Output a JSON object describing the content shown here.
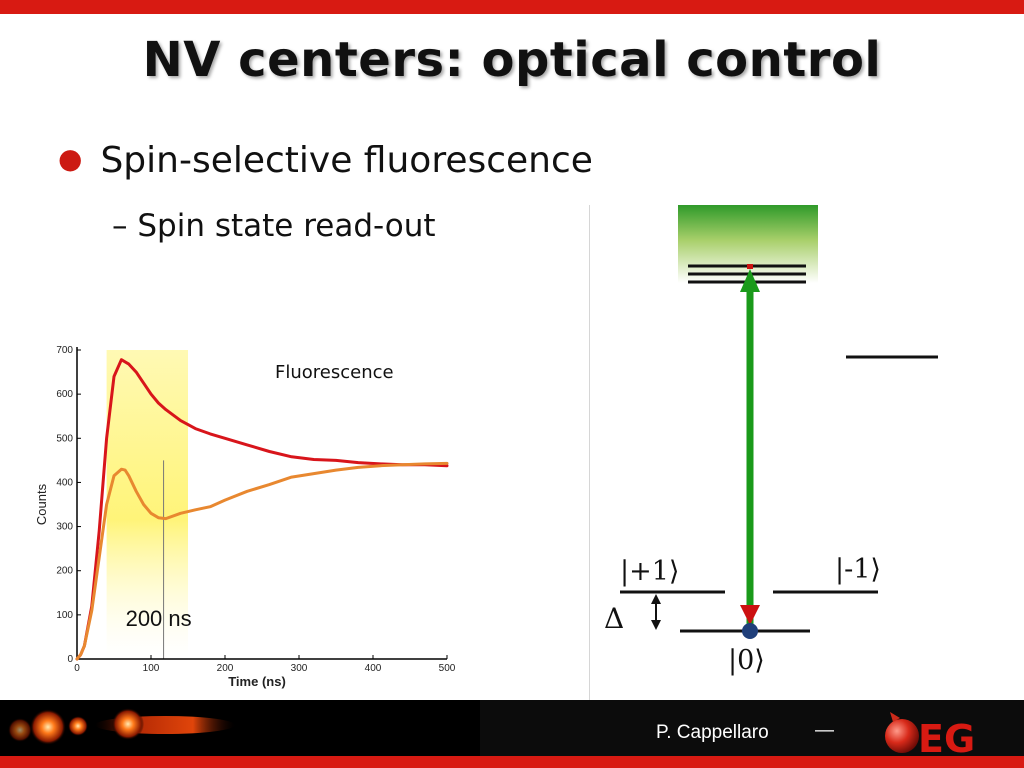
{
  "slide": {
    "title": "NV centers: optical control",
    "bullet": "Spin-selective fluorescence",
    "sub_bullet": "– Spin state read-out",
    "footer_author": "P. Cappellaro",
    "footer_dash": "—",
    "logo_text": "EG"
  },
  "energy_diagram": {
    "plus_label": "|+1⟩",
    "minus_label": "|-1⟩",
    "zero_label": "|0⟩",
    "delta_label": "Δ",
    "colors": {
      "excitation_arrow": "#1a9a1a",
      "decay_arrow": "#cc1111",
      "ground_dot": "#1f3f7a"
    }
  },
  "chart_data": {
    "type": "line",
    "xlabel": "Time (ns)",
    "ylabel": "Counts",
    "xlim": [
      0,
      500
    ],
    "ylim": [
      0,
      700
    ],
    "xticks": [
      0,
      100,
      200,
      300,
      400,
      500
    ],
    "yticks": [
      0,
      100,
      200,
      300,
      400,
      500,
      600,
      700
    ],
    "annotation_fluorescence": "Fluorescence",
    "annotation_window": "200 ns",
    "window_marker_x": 117,
    "highlight_x_range": [
      40,
      150
    ],
    "series": [
      {
        "color": "#d8151b",
        "x": [
          0,
          5,
          10,
          20,
          30,
          40,
          50,
          60,
          70,
          80,
          90,
          100,
          110,
          120,
          140,
          160,
          180,
          200,
          230,
          260,
          290,
          320,
          350,
          380,
          410,
          440,
          470,
          500
        ],
        "y": [
          0,
          10,
          30,
          120,
          290,
          500,
          640,
          678,
          668,
          650,
          625,
          600,
          580,
          565,
          540,
          522,
          510,
          500,
          485,
          470,
          458,
          452,
          450,
          445,
          442,
          440,
          440,
          438
        ]
      },
      {
        "color": "#e88830",
        "x": [
          0,
          5,
          10,
          20,
          30,
          40,
          50,
          60,
          65,
          70,
          80,
          90,
          100,
          110,
          120,
          140,
          160,
          180,
          200,
          230,
          260,
          290,
          320,
          350,
          380,
          410,
          440,
          470,
          500
        ],
        "y": [
          0,
          10,
          30,
          110,
          230,
          350,
          415,
          430,
          428,
          415,
          380,
          350,
          330,
          320,
          318,
          330,
          338,
          345,
          360,
          380,
          395,
          412,
          420,
          428,
          434,
          438,
          440,
          442,
          443
        ]
      }
    ]
  }
}
